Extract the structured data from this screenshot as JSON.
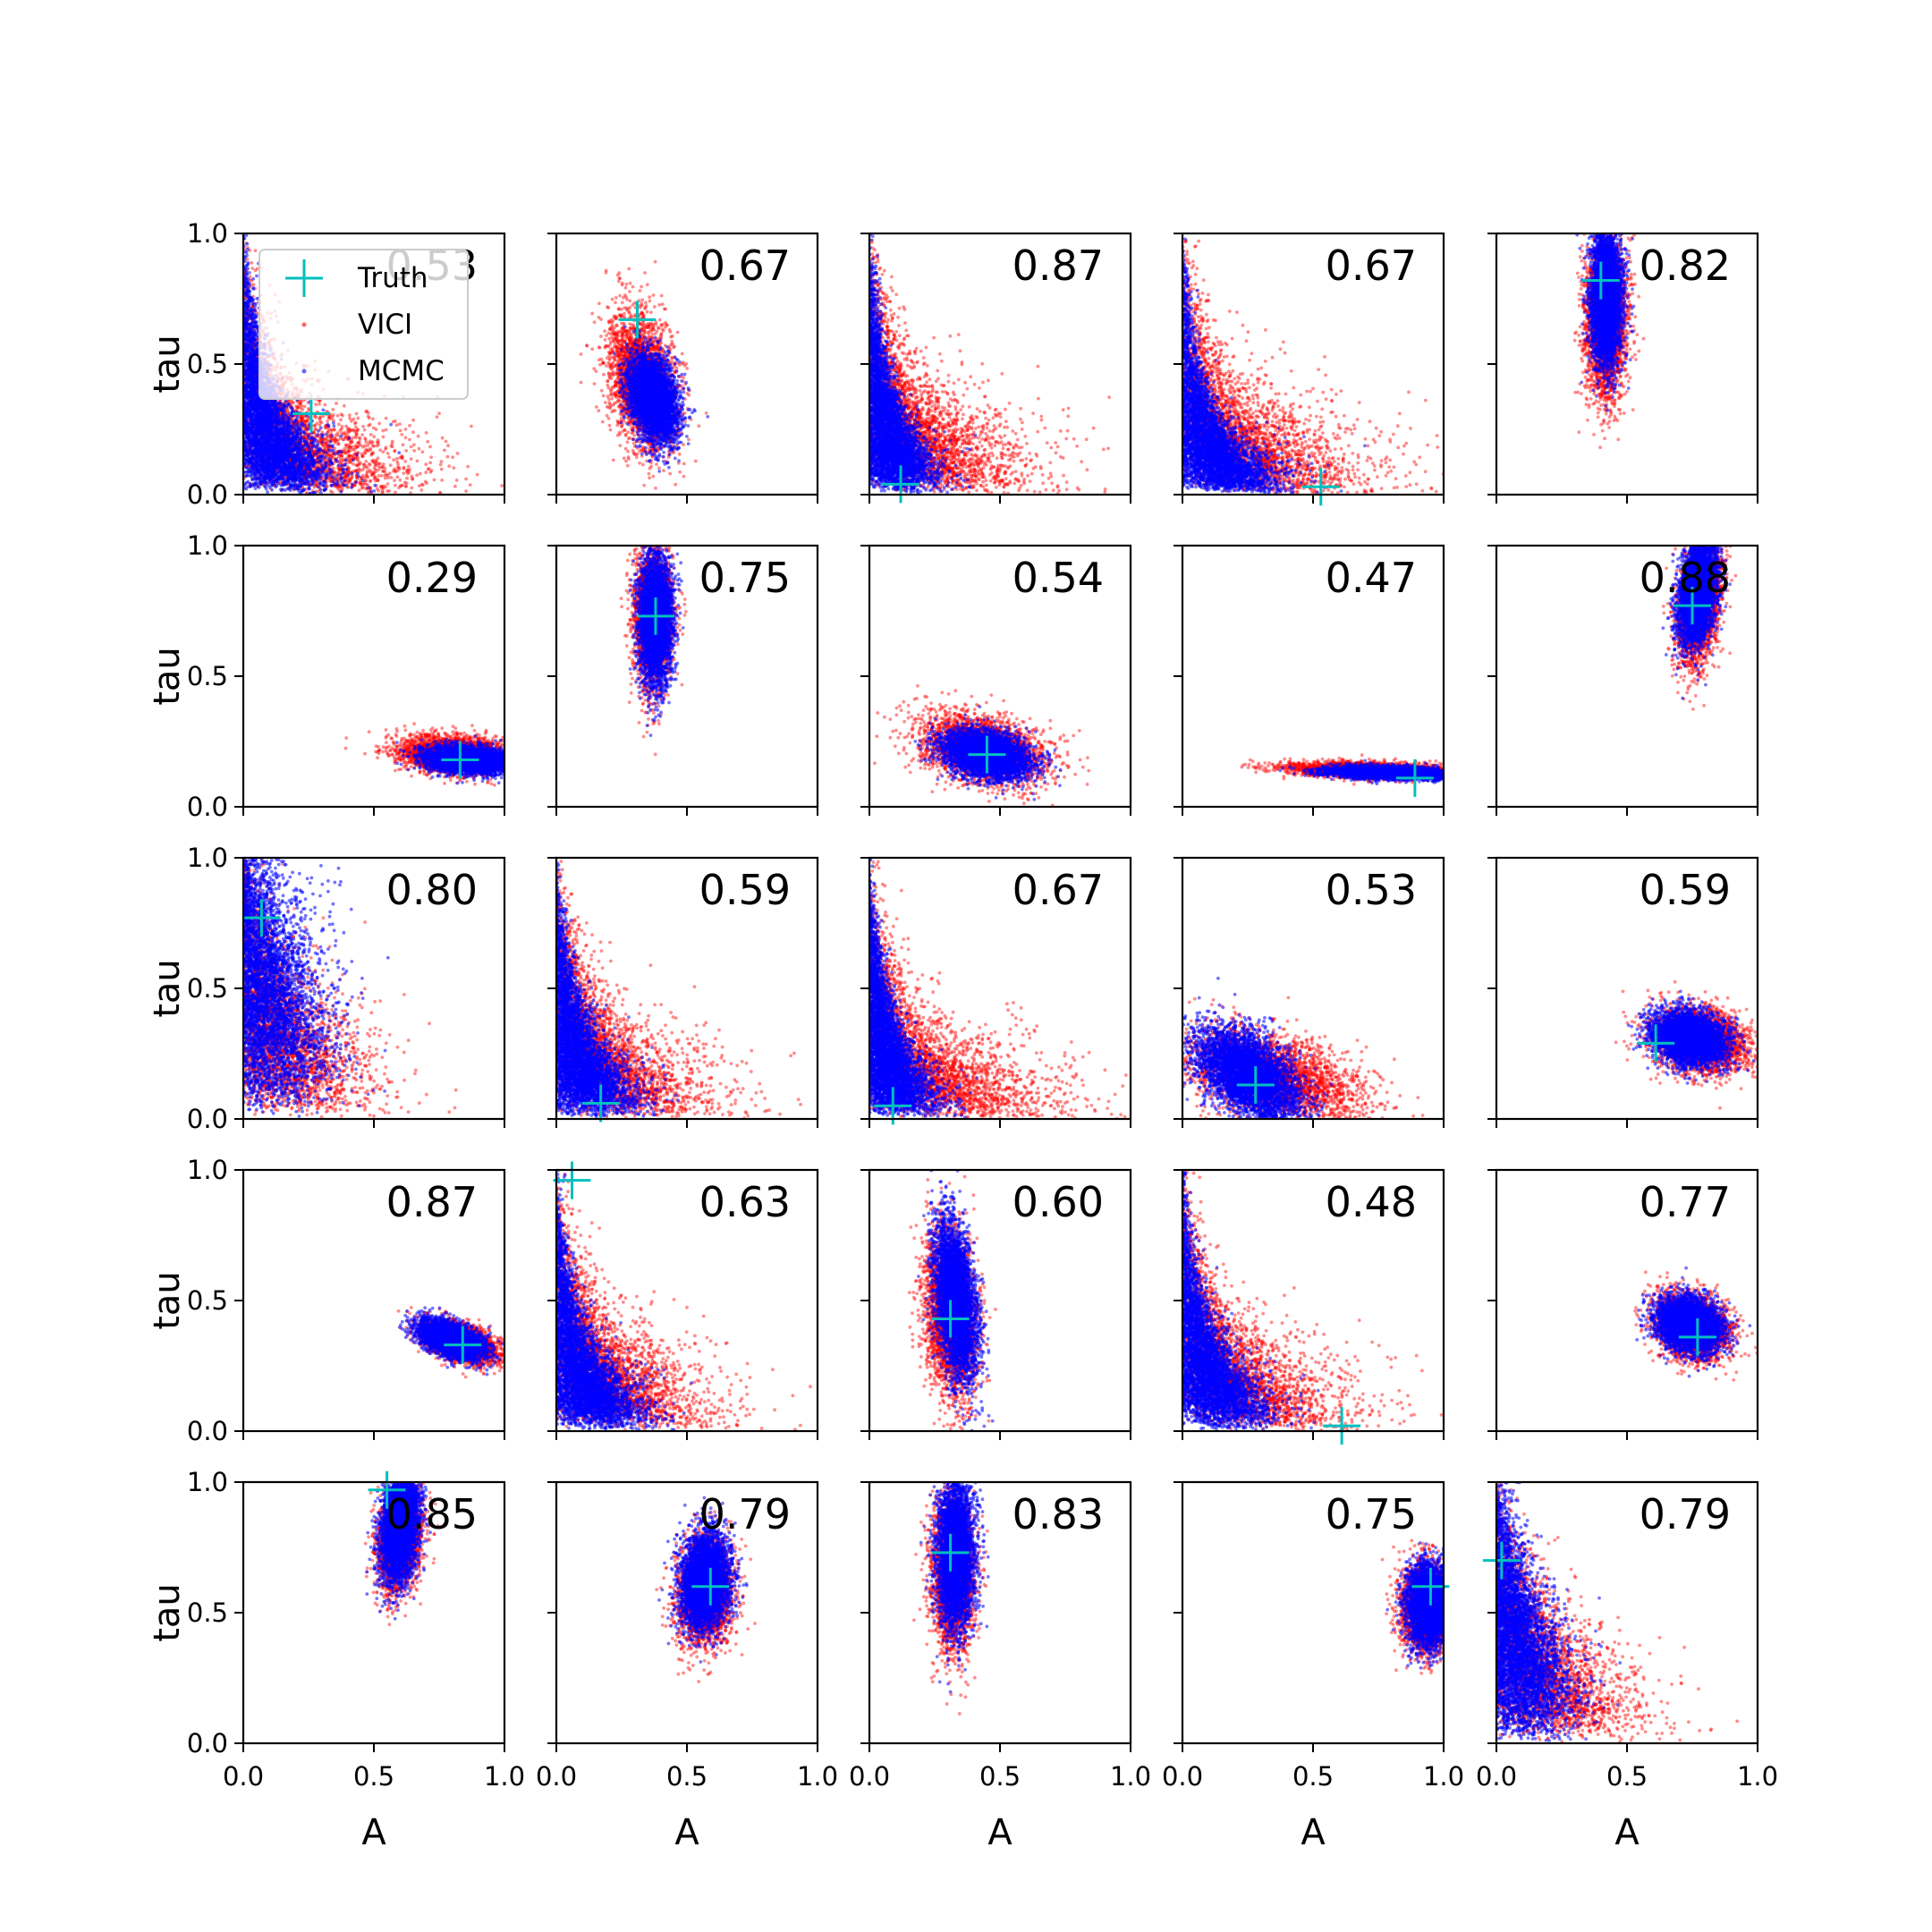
{
  "chart_data": {
    "type": "scatter",
    "layout": "5x5 grid of subplots",
    "xlabel": "A",
    "ylabel": "tau",
    "xlim": [
      0,
      1
    ],
    "ylim": [
      0,
      1
    ],
    "xticks": [
      "0.0",
      "0.5",
      "1.0"
    ],
    "yticks": [
      "0.0",
      "0.5",
      "1.0"
    ],
    "legend": {
      "position": "upper-left of first subplot",
      "entries": [
        {
          "label": "Truth",
          "marker": "+",
          "color": "#00bfbf"
        },
        {
          "label": "VICI",
          "marker": "dot",
          "color": "#ff0000"
        },
        {
          "label": "MCMC",
          "marker": "dot",
          "color": "#0000ff"
        }
      ]
    },
    "series_colors": {
      "vici": "#ff0000",
      "mcmc": "#0000ff",
      "truth": "#00bfbf"
    },
    "panels": [
      {
        "score": "0.53",
        "truth": [
          0.26,
          0.31
        ],
        "shape": "L",
        "vici": {
          "w": 0.27,
          "h": 0.24
        },
        "mcmc": {
          "w": 0.13,
          "h": 0.17
        }
      },
      {
        "score": "0.67",
        "truth": [
          0.31,
          0.67
        ],
        "shape": "blob",
        "vici": {
          "cx": 0.33,
          "cy": 0.43,
          "sx": 0.065,
          "sy": 0.13,
          "rho": -0.35
        },
        "mcmc": {
          "cx": 0.37,
          "cy": 0.37,
          "sx": 0.045,
          "sy": 0.08,
          "rho": -0.3
        }
      },
      {
        "score": "0.87",
        "truth": [
          0.12,
          0.04
        ],
        "shape": "L",
        "vici": {
          "w": 0.26,
          "h": 0.26
        },
        "mcmc": {
          "w": 0.1,
          "h": 0.14
        }
      },
      {
        "score": "0.67",
        "truth": [
          0.53,
          0.03
        ],
        "shape": "L",
        "vici": {
          "w": 0.3,
          "h": 0.26
        },
        "mcmc": {
          "w": 0.15,
          "h": 0.14
        }
      },
      {
        "score": "0.82",
        "truth": [
          0.4,
          0.82
        ],
        "shape": "blob",
        "vici": {
          "cx": 0.42,
          "cy": 0.67,
          "sx": 0.04,
          "sy": 0.15,
          "rho": 0
        },
        "mcmc": {
          "cx": 0.42,
          "cy": 0.75,
          "sx": 0.03,
          "sy": 0.13,
          "rho": 0
        }
      },
      {
        "score": "0.29",
        "truth": [
          0.83,
          0.18
        ],
        "shape": "blob",
        "vici": {
          "cx": 0.81,
          "cy": 0.2,
          "sx": 0.11,
          "sy": 0.035,
          "rho": -0.2
        },
        "mcmc": {
          "cx": 0.86,
          "cy": 0.18,
          "sx": 0.08,
          "sy": 0.025,
          "rho": -0.2
        }
      },
      {
        "score": "0.75",
        "truth": [
          0.38,
          0.73
        ],
        "shape": "blob",
        "vici": {
          "cx": 0.37,
          "cy": 0.73,
          "sx": 0.035,
          "sy": 0.13,
          "rho": 0
        },
        "mcmc": {
          "cx": 0.38,
          "cy": 0.72,
          "sx": 0.03,
          "sy": 0.12,
          "rho": 0
        }
      },
      {
        "score": "0.54",
        "truth": [
          0.45,
          0.2
        ],
        "shape": "blob",
        "vici": {
          "cx": 0.43,
          "cy": 0.22,
          "sx": 0.12,
          "sy": 0.065,
          "rho": -0.35
        },
        "mcmc": {
          "cx": 0.45,
          "cy": 0.2,
          "sx": 0.08,
          "sy": 0.045,
          "rho": -0.3
        }
      },
      {
        "score": "0.47",
        "truth": [
          0.89,
          0.11
        ],
        "shape": "blob",
        "vici": {
          "cx": 0.73,
          "cy": 0.14,
          "sx": 0.16,
          "sy": 0.015,
          "rho": -0.3
        },
        "mcmc": {
          "cx": 0.8,
          "cy": 0.13,
          "sx": 0.12,
          "sy": 0.012,
          "rho": -0.3
        }
      },
      {
        "score": "0.88",
        "truth": [
          0.75,
          0.77
        ],
        "shape": "blob",
        "vici": {
          "cx": 0.78,
          "cy": 0.8,
          "sx": 0.04,
          "sy": 0.12,
          "rho": 0.3
        },
        "mcmc": {
          "cx": 0.77,
          "cy": 0.82,
          "sx": 0.035,
          "sy": 0.1,
          "rho": 0.3
        }
      },
      {
        "score": "0.80",
        "truth": [
          0.07,
          0.77
        ],
        "shape": "L",
        "vici": {
          "w": 0.2,
          "h": 0.32
        },
        "mcmc": {
          "w": 0.14,
          "h": 0.5
        }
      },
      {
        "score": "0.59",
        "truth": [
          0.17,
          0.06
        ],
        "shape": "L",
        "vici": {
          "w": 0.24,
          "h": 0.25
        },
        "mcmc": {
          "w": 0.12,
          "h": 0.16
        }
      },
      {
        "score": "0.67",
        "truth": [
          0.09,
          0.05
        ],
        "shape": "L",
        "vici": {
          "w": 0.3,
          "h": 0.24
        },
        "mcmc": {
          "w": 0.1,
          "h": 0.14
        }
      },
      {
        "score": "0.53",
        "truth": [
          0.28,
          0.13
        ],
        "shape": "blob",
        "vici": {
          "cx": 0.35,
          "cy": 0.16,
          "sx": 0.17,
          "sy": 0.09,
          "rho": -0.45
        },
        "mcmc": {
          "cx": 0.25,
          "cy": 0.17,
          "sx": 0.1,
          "sy": 0.09,
          "rho": -0.5
        }
      },
      {
        "score": "0.59",
        "truth": [
          0.61,
          0.29
        ],
        "shape": "blob",
        "vici": {
          "cx": 0.78,
          "cy": 0.3,
          "sx": 0.09,
          "sy": 0.06,
          "rho": -0.2
        },
        "mcmc": {
          "cx": 0.74,
          "cy": 0.31,
          "sx": 0.07,
          "sy": 0.05,
          "rho": -0.2
        }
      },
      {
        "score": "0.87",
        "truth": [
          0.84,
          0.33
        ],
        "shape": "blob",
        "vici": {
          "cx": 0.83,
          "cy": 0.34,
          "sx": 0.07,
          "sy": 0.04,
          "rho": -0.5
        },
        "mcmc": {
          "cx": 0.8,
          "cy": 0.35,
          "sx": 0.06,
          "sy": 0.035,
          "rho": -0.5
        }
      },
      {
        "score": "0.63",
        "truth": [
          0.06,
          0.96
        ],
        "shape": "L",
        "vici": {
          "w": 0.25,
          "h": 0.26
        },
        "mcmc": {
          "w": 0.13,
          "h": 0.16
        }
      },
      {
        "score": "0.60",
        "truth": [
          0.31,
          0.43
        ],
        "shape": "blob",
        "vici": {
          "cx": 0.31,
          "cy": 0.45,
          "sx": 0.05,
          "sy": 0.16,
          "rho": -0.2
        },
        "mcmc": {
          "cx": 0.33,
          "cy": 0.5,
          "sx": 0.04,
          "sy": 0.15,
          "rho": -0.4
        }
      },
      {
        "score": "0.48",
        "truth": [
          0.61,
          0.02
        ],
        "shape": "L",
        "vici": {
          "w": 0.26,
          "h": 0.25
        },
        "mcmc": {
          "w": 0.13,
          "h": 0.17
        }
      },
      {
        "score": "0.77",
        "truth": [
          0.77,
          0.36
        ],
        "shape": "blob",
        "vici": {
          "cx": 0.75,
          "cy": 0.4,
          "sx": 0.07,
          "sy": 0.06,
          "rho": -0.2
        },
        "mcmc": {
          "cx": 0.74,
          "cy": 0.41,
          "sx": 0.06,
          "sy": 0.05,
          "rho": -0.2
        }
      },
      {
        "score": "0.85",
        "truth": [
          0.55,
          0.97
        ],
        "shape": "blob",
        "vici": {
          "cx": 0.6,
          "cy": 0.8,
          "sx": 0.04,
          "sy": 0.1,
          "rho": 0.2
        },
        "mcmc": {
          "cx": 0.6,
          "cy": 0.83,
          "sx": 0.035,
          "sy": 0.1,
          "rho": 0.2
        }
      },
      {
        "score": "0.79",
        "truth": [
          0.59,
          0.6
        ],
        "shape": "blob",
        "vici": {
          "cx": 0.57,
          "cy": 0.58,
          "sx": 0.05,
          "sy": 0.1,
          "rho": 0.1
        },
        "mcmc": {
          "cx": 0.57,
          "cy": 0.62,
          "sx": 0.045,
          "sy": 0.09,
          "rho": 0.1
        }
      },
      {
        "score": "0.83",
        "truth": [
          0.31,
          0.73
        ],
        "shape": "blob",
        "vici": {
          "cx": 0.32,
          "cy": 0.65,
          "sx": 0.04,
          "sy": 0.14,
          "rho": 0
        },
        "mcmc": {
          "cx": 0.33,
          "cy": 0.73,
          "sx": 0.035,
          "sy": 0.14,
          "rho": 0
        }
      },
      {
        "score": "0.75",
        "truth": [
          0.95,
          0.6
        ],
        "shape": "blob",
        "vici": {
          "cx": 0.94,
          "cy": 0.52,
          "sx": 0.05,
          "sy": 0.08,
          "rho": 0
        },
        "mcmc": {
          "cx": 0.95,
          "cy": 0.53,
          "sx": 0.045,
          "sy": 0.075,
          "rho": 0
        }
      },
      {
        "score": "0.79",
        "truth": [
          0.02,
          0.7
        ],
        "shape": "L",
        "vici": {
          "w": 0.22,
          "h": 0.3
        },
        "mcmc": {
          "w": 0.12,
          "h": 0.3
        }
      }
    ]
  }
}
